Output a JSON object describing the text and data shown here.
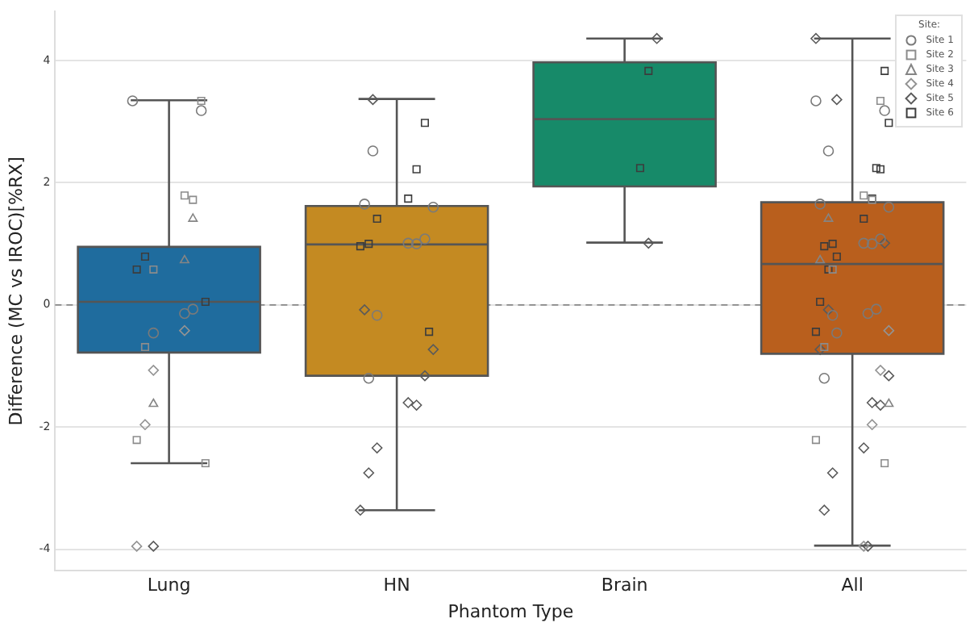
{
  "chart_data": {
    "type": "box",
    "xlabel": "Phantom Type",
    "ylabel": "Difference (MC vs IROC)[%RX]",
    "legend_title": "Site:",
    "categories": [
      "Lung",
      "HN",
      "Brain",
      "All"
    ],
    "boxes": [
      {
        "low": -2.59,
        "q1": -0.78,
        "median": 0.05,
        "q3": 0.95,
        "high": 3.35
      },
      {
        "low": -3.36,
        "q1": -1.16,
        "median": 0.99,
        "q3": 1.62,
        "high": 3.37
      },
      {
        "low": 1.02,
        "q1": 1.94,
        "median": 3.04,
        "q3": 3.97,
        "high": 4.36
      },
      {
        "low": -3.94,
        "q1": -0.8,
        "median": 0.67,
        "q3": 1.68,
        "high": 4.36
      }
    ],
    "colors": [
      "#1f6c9e",
      "#c48a22",
      "#178a69",
      "#b95f1d"
    ],
    "series": [
      {
        "name": "Site 1",
        "type": "scatter",
        "marker": "circle",
        "color": "#7a7a7a",
        "x": [
          "Lung",
          "Lung",
          "Lung",
          "Lung",
          "Lung",
          "HN",
          "HN",
          "HN",
          "HN",
          "HN",
          "HN",
          "HN",
          "HN",
          "All",
          "All",
          "All",
          "All",
          "All",
          "All",
          "All",
          "All",
          "All",
          "All",
          "All",
          "All",
          "All"
        ],
        "values": [
          3.34,
          3.18,
          -0.07,
          -0.14,
          -0.46,
          2.52,
          1.65,
          1.6,
          1.08,
          1.0,
          1.01,
          -0.17,
          -1.2,
          3.34,
          3.18,
          -0.07,
          -0.14,
          -0.46,
          2.52,
          1.65,
          1.6,
          1.08,
          1.0,
          1.01,
          -0.17,
          -1.2
        ]
      },
      {
        "name": "Site 2",
        "type": "scatter",
        "marker": "square",
        "color": "#8c8c8c",
        "x": [
          "Lung",
          "Lung",
          "Lung",
          "Lung",
          "Lung",
          "Lung",
          "Lung",
          "All",
          "All",
          "All",
          "All",
          "All",
          "All",
          "All"
        ],
        "values": [
          3.34,
          1.72,
          1.79,
          0.58,
          -0.69,
          -2.21,
          -2.59,
          3.34,
          1.72,
          1.79,
          0.58,
          -0.69,
          -2.21,
          -2.59
        ]
      },
      {
        "name": "Site 3",
        "type": "scatter",
        "marker": "triangle",
        "color": "#858585",
        "x": [
          "Lung",
          "Lung",
          "Lung",
          "All",
          "All",
          "All"
        ],
        "values": [
          1.41,
          0.73,
          -1.62,
          1.41,
          0.73,
          -1.62
        ]
      },
      {
        "name": "Site 4",
        "type": "scatter",
        "marker": "diamond",
        "color": "#939393",
        "x": [
          "Lung",
          "Lung",
          "Lung",
          "Lung",
          "All",
          "All",
          "All",
          "All"
        ],
        "values": [
          -0.42,
          -1.07,
          -1.96,
          -3.95,
          -0.42,
          -1.07,
          -1.96,
          -3.95
        ]
      },
      {
        "name": "Site 5",
        "type": "scatter",
        "marker": "diamond",
        "color": "#5a5a5a",
        "x": [
          "Lung",
          "HN",
          "HN",
          "HN",
          "HN",
          "HN",
          "HN",
          "HN",
          "HN",
          "HN",
          "Brain",
          "Brain",
          "All",
          "All",
          "All",
          "All",
          "All",
          "All",
          "All",
          "All",
          "All",
          "All",
          "All",
          "All"
        ],
        "values": [
          -3.95,
          3.36,
          -0.08,
          -0.73,
          -1.16,
          -1.64,
          -1.6,
          -2.34,
          -2.75,
          -3.36,
          4.36,
          1.01,
          -3.95,
          3.36,
          -0.08,
          -0.73,
          -1.16,
          -1.64,
          -1.6,
          -2.34,
          -2.75,
          -3.36,
          4.36,
          1.01
        ]
      },
      {
        "name": "Site 6",
        "type": "scatter",
        "marker": "square",
        "color": "#3c3c3c",
        "x": [
          "Lung",
          "Lung",
          "Lung",
          "HN",
          "HN",
          "HN",
          "HN",
          "HN",
          "HN",
          "HN",
          "Brain",
          "Brain",
          "All",
          "All",
          "All",
          "All",
          "All",
          "All",
          "All",
          "All",
          "All",
          "All",
          "All",
          "All"
        ],
        "values": [
          0.79,
          0.58,
          0.05,
          2.98,
          2.22,
          1.74,
          1.41,
          1.0,
          0.96,
          -0.44,
          3.83,
          2.24,
          0.79,
          0.58,
          0.05,
          2.98,
          2.22,
          1.74,
          1.41,
          1.0,
          0.96,
          -0.44,
          3.83,
          2.24
        ]
      }
    ],
    "ylim": [
      -4.35,
      4.8
    ],
    "yticks": [
      -4,
      -2,
      0,
      2,
      4
    ],
    "ref_lines": [
      {
        "axis": "y",
        "value": 0,
        "color": "#888888",
        "line_style": "dashed"
      }
    ],
    "grid": "y",
    "legend": "top right"
  }
}
